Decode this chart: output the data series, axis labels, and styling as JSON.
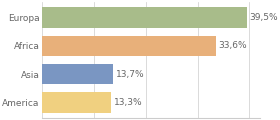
{
  "categories": [
    "Europa",
    "Africa",
    "Asia",
    "America"
  ],
  "values": [
    39.5,
    33.6,
    13.7,
    13.3
  ],
  "bar_colors": [
    "#a8bc8a",
    "#e8b07a",
    "#7a96c2",
    "#f0d080"
  ],
  "labels": [
    "39,5%",
    "33,6%",
    "13,7%",
    "13,3%"
  ],
  "xlim": [
    0,
    42
  ],
  "label_fontsize": 6.5,
  "category_fontsize": 6.5,
  "bar_height": 0.72,
  "background_color": "#ffffff",
  "text_color": "#666666",
  "spine_color": "#cccccc"
}
